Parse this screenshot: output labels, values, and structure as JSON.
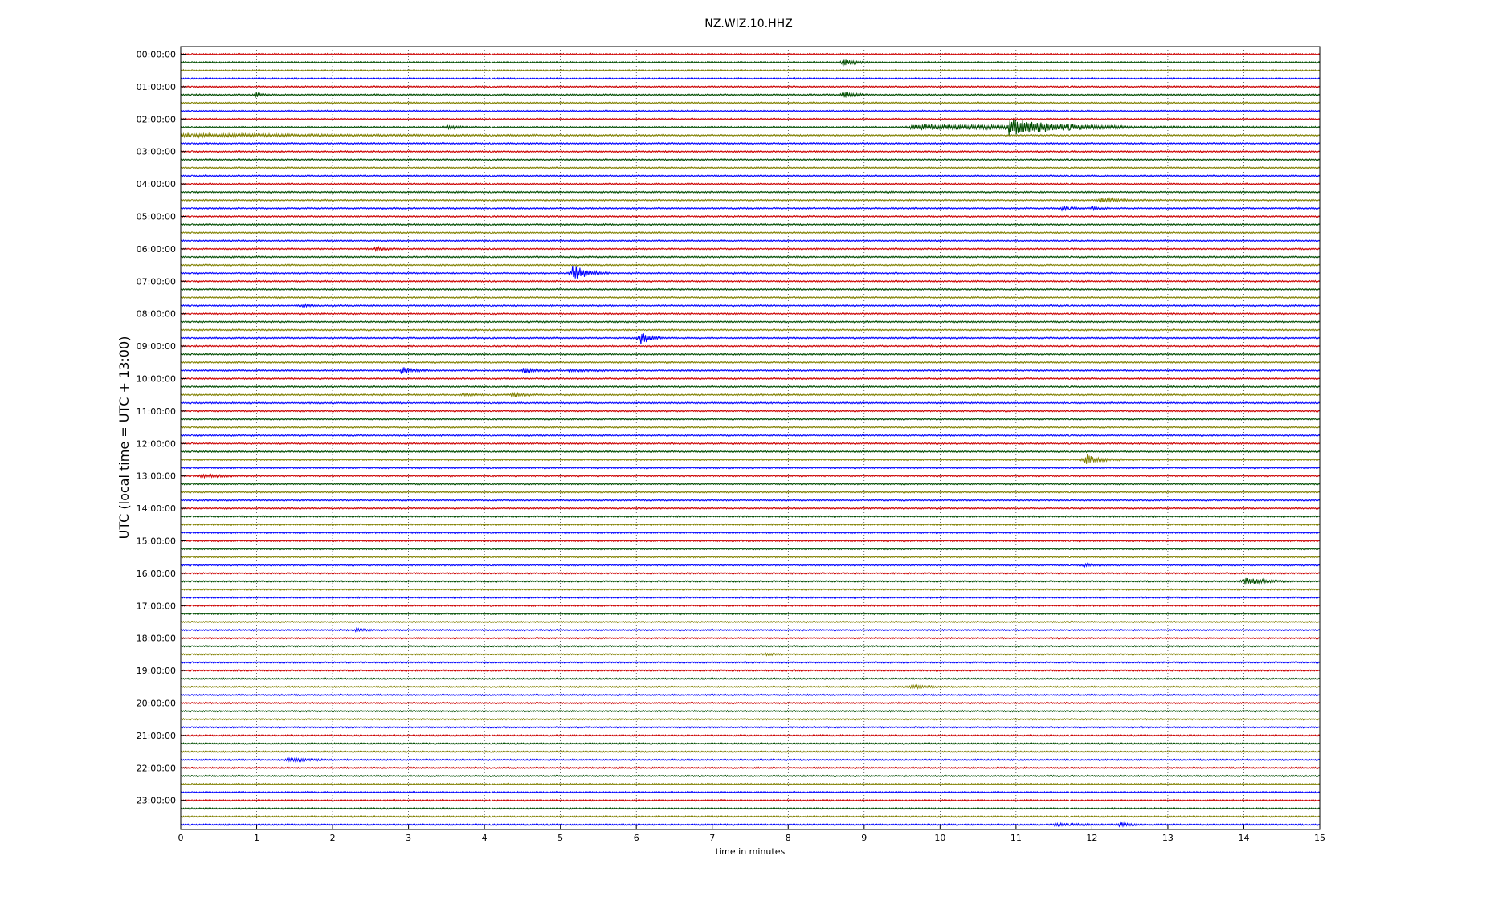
{
  "chart_data": {
    "type": "line",
    "title": "NZ.WIZ.10.HHZ",
    "xlabel": "time in minutes",
    "ylabel": "UTC (local time = UTC + 13:00)",
    "xlim": [
      0,
      15
    ],
    "x_ticks": [
      "0",
      "1",
      "2",
      "3",
      "4",
      "5",
      "6",
      "7",
      "8",
      "9",
      "10",
      "11",
      "12",
      "13",
      "14",
      "15"
    ],
    "y_tick_labels": [
      "00:00:00",
      "01:00:00",
      "02:00:00",
      "03:00:00",
      "04:00:00",
      "05:00:00",
      "06:00:00",
      "07:00:00",
      "08:00:00",
      "09:00:00",
      "10:00:00",
      "11:00:00",
      "12:00:00",
      "13:00:00",
      "14:00:00",
      "15:00:00",
      "16:00:00",
      "17:00:00",
      "18:00:00",
      "19:00:00",
      "20:00:00",
      "21:00:00",
      "22:00:00",
      "23:00:00"
    ],
    "traces_per_hour": 4,
    "minutes_per_trace": 15,
    "grid": "vertical-dotted",
    "trace_colors": [
      "#cc0000",
      "#004d00",
      "#808000",
      "#0000ff"
    ],
    "events": [
      {
        "trace": 1,
        "minute": 8.72,
        "amp": 0.9,
        "dur": 0.35
      },
      {
        "trace": 5,
        "minute": 0.98,
        "amp": 0.6,
        "dur": 0.2
      },
      {
        "trace": 5,
        "minute": 8.72,
        "amp": 0.9,
        "dur": 0.35
      },
      {
        "trace": 9,
        "minute": 3.5,
        "amp": 0.4,
        "dur": 0.4
      },
      {
        "trace": 9,
        "minute": 9.6,
        "amp": 0.6,
        "dur": 5.4
      },
      {
        "trace": 9,
        "minute": 10.9,
        "amp": 2.0,
        "dur": 1.5
      },
      {
        "trace": 10,
        "minute": 0.0,
        "amp": 0.35,
        "dur": 6.5
      },
      {
        "trace": 18,
        "minute": 12.1,
        "amp": 0.5,
        "dur": 0.8
      },
      {
        "trace": 19,
        "minute": 11.6,
        "amp": 0.35,
        "dur": 0.4
      },
      {
        "trace": 19,
        "minute": 12.0,
        "amp": 0.3,
        "dur": 0.3
      },
      {
        "trace": 24,
        "minute": 2.55,
        "amp": 0.45,
        "dur": 0.35
      },
      {
        "trace": 27,
        "minute": 5.15,
        "amp": 1.8,
        "dur": 0.5
      },
      {
        "trace": 31,
        "minute": 1.6,
        "amp": 0.35,
        "dur": 0.3
      },
      {
        "trace": 35,
        "minute": 6.05,
        "amp": 1.6,
        "dur": 0.3
      },
      {
        "trace": 39,
        "minute": 2.9,
        "amp": 0.8,
        "dur": 0.4
      },
      {
        "trace": 39,
        "minute": 4.5,
        "amp": 0.7,
        "dur": 0.4
      },
      {
        "trace": 39,
        "minute": 5.1,
        "amp": 0.25,
        "dur": 0.7
      },
      {
        "trace": 42,
        "minute": 4.35,
        "amp": 0.5,
        "dur": 0.4
      },
      {
        "trace": 42,
        "minute": 3.7,
        "amp": 0.25,
        "dur": 0.5
      },
      {
        "trace": 50,
        "minute": 11.9,
        "amp": 1.3,
        "dur": 0.5
      },
      {
        "trace": 52,
        "minute": 0.25,
        "amp": 0.3,
        "dur": 0.9
      },
      {
        "trace": 63,
        "minute": 11.9,
        "amp": 0.3,
        "dur": 0.4
      },
      {
        "trace": 65,
        "minute": 14.0,
        "amp": 1.1,
        "dur": 0.6
      },
      {
        "trace": 71,
        "minute": 2.3,
        "amp": 0.25,
        "dur": 0.4
      },
      {
        "trace": 74,
        "minute": 7.7,
        "amp": 0.2,
        "dur": 0.3
      },
      {
        "trace": 78,
        "minute": 9.6,
        "amp": 0.5,
        "dur": 0.5
      },
      {
        "trace": 87,
        "minute": 1.4,
        "amp": 0.5,
        "dur": 0.6
      },
      {
        "trace": 95,
        "minute": 11.5,
        "amp": 0.3,
        "dur": 0.8
      },
      {
        "trace": 95,
        "minute": 12.35,
        "amp": 0.6,
        "dur": 0.3
      }
    ]
  }
}
